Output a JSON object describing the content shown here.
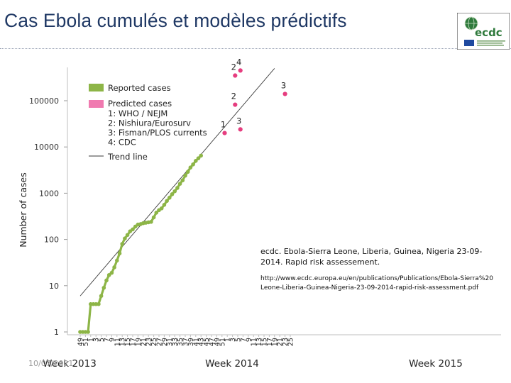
{
  "slide": {
    "title": "Cas Ebola cumulés et modèles prédictifs",
    "footer_date": "10/07/2021"
  },
  "logo": {
    "text": "ecdc"
  },
  "colors": {
    "reported": "#8db547",
    "predicted": "#e63d7f",
    "predicted_legend": "#f07ab0",
    "trend": "#3a3a3a",
    "title": "#1f3864"
  },
  "source": {
    "reference": "ecdc. Ebola-Sierra Leone, Liberia, Guinea, Nigeria 23-09-2014. Rapid risk assessement.",
    "url": "http://www.ecdc.europa.eu/en/publications/Publications/Ebola-Sierra%20Leone-Liberia-Guinea-Nigeria-23-09-2014-rapid-risk-assessment.pdf"
  },
  "chart_data": {
    "type": "line",
    "scale": "log",
    "ylabel": "Number of cases",
    "yticks": [
      1,
      10,
      100,
      1000,
      10000,
      100000
    ],
    "ylim": [
      1,
      500000
    ],
    "xlabel_groups": [
      {
        "label": "Week 2013",
        "first_tick": "49",
        "last_tick": "52"
      },
      {
        "label": "Week 2014",
        "first_tick": "1",
        "last_tick": "52"
      },
      {
        "label": "Week 2015",
        "first_tick": "1",
        "last_tick": "25"
      }
    ],
    "x_tick_labels": [
      "49",
      "51",
      "1",
      "3",
      "5",
      "7",
      "9",
      "11",
      "13",
      "15",
      "17",
      "19",
      "21",
      "23",
      "25",
      "27",
      "29",
      "31",
      "33",
      "35",
      "37",
      "39",
      "41",
      "43",
      "45",
      "47",
      "49",
      "51",
      "1",
      "3",
      "5",
      "7",
      "9",
      "11",
      "13",
      "15",
      "17",
      "19",
      "21",
      "23",
      "25"
    ],
    "legend": {
      "reported": "Reported cases",
      "predicted": "Predicted cases",
      "models": [
        "1: WHO / NEJM",
        "2: Nishiura/Eurosurv",
        "3: Fisman/PLOS currents",
        "4: CDC"
      ],
      "trend": "Trend line"
    },
    "reported_cases": [
      {
        "week": "2013-W49",
        "y": 1
      },
      {
        "week": "2013-W50",
        "y": 1
      },
      {
        "week": "2013-W51",
        "y": 1
      },
      {
        "week": "2013-W52",
        "y": 1
      },
      {
        "week": "2014-W01",
        "y": 4
      },
      {
        "week": "2014-W02",
        "y": 4
      },
      {
        "week": "2014-W03",
        "y": 4
      },
      {
        "week": "2014-W04",
        "y": 4
      },
      {
        "week": "2014-W05",
        "y": 6
      },
      {
        "week": "2014-W06",
        "y": 9
      },
      {
        "week": "2014-W07",
        "y": 13
      },
      {
        "week": "2014-W08",
        "y": 17
      },
      {
        "week": "2014-W09",
        "y": 19
      },
      {
        "week": "2014-W10",
        "y": 25
      },
      {
        "week": "2014-W11",
        "y": 35
      },
      {
        "week": "2014-W12",
        "y": 50
      },
      {
        "week": "2014-W13",
        "y": 80
      },
      {
        "week": "2014-W14",
        "y": 105
      },
      {
        "week": "2014-W15",
        "y": 125
      },
      {
        "week": "2014-W16",
        "y": 150
      },
      {
        "week": "2014-W17",
        "y": 165
      },
      {
        "week": "2014-W18",
        "y": 190
      },
      {
        "week": "2014-W19",
        "y": 210
      },
      {
        "week": "2014-W20",
        "y": 215
      },
      {
        "week": "2014-W21",
        "y": 225
      },
      {
        "week": "2014-W22",
        "y": 230
      },
      {
        "week": "2014-W23",
        "y": 235
      },
      {
        "week": "2014-W24",
        "y": 240
      },
      {
        "week": "2014-W25",
        "y": 300
      },
      {
        "week": "2014-W26",
        "y": 380
      },
      {
        "week": "2014-W27",
        "y": 430
      },
      {
        "week": "2014-W28",
        "y": 470
      },
      {
        "week": "2014-W29",
        "y": 560
      },
      {
        "week": "2014-W30",
        "y": 680
      },
      {
        "week": "2014-W31",
        "y": 800
      },
      {
        "week": "2014-W32",
        "y": 950
      },
      {
        "week": "2014-W33",
        "y": 1100
      },
      {
        "week": "2014-W34",
        "y": 1300
      },
      {
        "week": "2014-W35",
        "y": 1600
      },
      {
        "week": "2014-W36",
        "y": 1900
      },
      {
        "week": "2014-W37",
        "y": 2400
      },
      {
        "week": "2014-W38",
        "y": 2900
      },
      {
        "week": "2014-W39",
        "y": 3600
      },
      {
        "week": "2014-W40",
        "y": 4200
      },
      {
        "week": "2014-W41",
        "y": 5000
      },
      {
        "week": "2014-W42",
        "y": 5700
      },
      {
        "week": "2014-W43",
        "y": 6500
      }
    ],
    "trend_line": [
      {
        "week": "2013-W49",
        "y": 6
      },
      {
        "week": "2015-W19",
        "y": 500000
      }
    ],
    "predicted_cases": [
      {
        "model": "1",
        "week": "2014-W52",
        "y": 20000
      },
      {
        "model": "2",
        "week": "2015-W04",
        "y": 82000
      },
      {
        "model": "2",
        "week": "2015-W04",
        "y": 350000
      },
      {
        "model": "3",
        "week": "2015-W06",
        "y": 24000
      },
      {
        "model": "4",
        "week": "2015-W06",
        "y": 450000
      },
      {
        "model": "3",
        "week": "2015-W23",
        "y": 140000
      }
    ]
  }
}
